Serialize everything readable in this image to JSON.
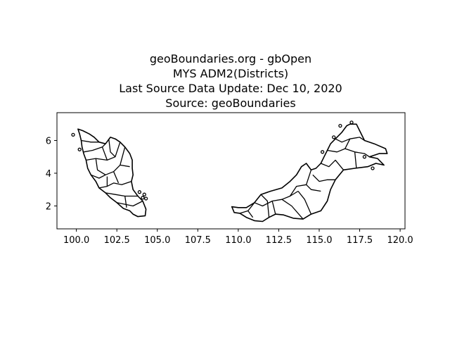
{
  "title_lines": [
    "geoBoundaries.org - gbOpen",
    "MYS ADM2(Districts)",
    "Last Source Data Update: Dec 10, 2020",
    "Source: geoBoundaries"
  ],
  "chart_data": {
    "type": "map",
    "xlim": [
      98.8,
      120.3
    ],
    "ylim": [
      0.6,
      7.7
    ],
    "x_ticks": [
      100.0,
      102.5,
      105.0,
      107.5,
      110.0,
      112.5,
      115.0,
      117.5,
      120.0
    ],
    "x_tick_labels": [
      "100.0",
      "102.5",
      "105.0",
      "107.5",
      "110.0",
      "112.5",
      "115.0",
      "117.5",
      "120.0"
    ],
    "y_ticks": [
      2,
      4,
      6
    ],
    "y_tick_labels": [
      "2",
      "4",
      "6"
    ],
    "grid": false,
    "regions": [
      {
        "name": "peninsular",
        "outline": [
          [
            100.1,
            6.7
          ],
          [
            100.4,
            6.6
          ],
          [
            100.8,
            6.4
          ],
          [
            101.1,
            6.2
          ],
          [
            101.4,
            5.9
          ],
          [
            101.8,
            5.8
          ],
          [
            102.1,
            6.2
          ],
          [
            102.4,
            6.1
          ],
          [
            102.7,
            5.9
          ],
          [
            103.0,
            5.6
          ],
          [
            103.3,
            5.2
          ],
          [
            103.45,
            4.8
          ],
          [
            103.45,
            4.3
          ],
          [
            103.5,
            3.9
          ],
          [
            103.4,
            3.5
          ],
          [
            103.5,
            3.0
          ],
          [
            103.8,
            2.6
          ],
          [
            104.1,
            2.3
          ],
          [
            104.3,
            1.8
          ],
          [
            104.25,
            1.4
          ],
          [
            103.8,
            1.35
          ],
          [
            103.5,
            1.5
          ],
          [
            103.3,
            1.7
          ],
          [
            102.9,
            1.85
          ],
          [
            102.5,
            2.2
          ],
          [
            102.1,
            2.5
          ],
          [
            101.8,
            2.8
          ],
          [
            101.4,
            3.1
          ],
          [
            101.2,
            3.5
          ],
          [
            100.9,
            3.9
          ],
          [
            100.7,
            4.3
          ],
          [
            100.6,
            4.8
          ],
          [
            100.45,
            5.2
          ],
          [
            100.35,
            5.6
          ],
          [
            100.3,
            6.0
          ],
          [
            100.2,
            6.4
          ],
          [
            100.1,
            6.7
          ]
        ],
        "inner_lines": [
          [
            [
              100.3,
              6.0
            ],
            [
              100.9,
              5.9
            ],
            [
              101.4,
              5.9
            ]
          ],
          [
            [
              100.45,
              5.3
            ],
            [
              101.0,
              5.4
            ],
            [
              101.6,
              5.6
            ],
            [
              101.8,
              5.8
            ]
          ],
          [
            [
              100.6,
              4.8
            ],
            [
              101.2,
              4.9
            ],
            [
              101.9,
              4.8
            ],
            [
              102.4,
              5.0
            ],
            [
              102.7,
              5.9
            ]
          ],
          [
            [
              101.2,
              4.9
            ],
            [
              101.3,
              4.2
            ],
            [
              101.8,
              3.9
            ],
            [
              102.3,
              4.1
            ],
            [
              102.7,
              4.5
            ],
            [
              103.3,
              4.4
            ]
          ],
          [
            [
              100.9,
              3.9
            ],
            [
              101.4,
              3.7
            ],
            [
              101.8,
              3.9
            ]
          ],
          [
            [
              101.4,
              3.1
            ],
            [
              101.9,
              3.2
            ],
            [
              102.3,
              3.4
            ],
            [
              102.8,
              3.3
            ],
            [
              103.4,
              3.5
            ]
          ],
          [
            [
              101.8,
              2.8
            ],
            [
              102.4,
              2.7
            ],
            [
              103.0,
              2.6
            ],
            [
              103.8,
              2.6
            ]
          ],
          [
            [
              102.5,
              2.2
            ],
            [
              103.0,
              2.1
            ],
            [
              103.5,
              2.0
            ],
            [
              104.1,
              2.3
            ]
          ],
          [
            [
              102.0,
              6.1
            ],
            [
              102.1,
              5.3
            ],
            [
              102.4,
              5.0
            ]
          ],
          [
            [
              101.6,
              5.6
            ],
            [
              101.9,
              4.8
            ]
          ],
          [
            [
              102.3,
              4.1
            ],
            [
              102.6,
              3.4
            ]
          ],
          [
            [
              103.0,
              2.6
            ],
            [
              103.1,
              1.9
            ]
          ],
          [
            [
              101.9,
              3.2
            ],
            [
              101.9,
              3.8
            ]
          ],
          [
            [
              102.7,
              4.5
            ],
            [
              103.0,
              5.6
            ]
          ]
        ],
        "islands": [
          [
            99.8,
            6.35
          ],
          [
            100.2,
            5.45
          ],
          [
            103.9,
            2.85
          ],
          [
            104.2,
            2.7
          ],
          [
            104.1,
            2.5
          ],
          [
            104.3,
            2.45
          ]
        ]
      },
      {
        "name": "borneo",
        "outline": [
          [
            109.6,
            1.95
          ],
          [
            109.75,
            1.6
          ],
          [
            110.1,
            1.55
          ],
          [
            110.5,
            1.3
          ],
          [
            111.0,
            1.1
          ],
          [
            111.5,
            1.05
          ],
          [
            111.9,
            1.3
          ],
          [
            112.3,
            1.5
          ],
          [
            112.8,
            1.45
          ],
          [
            113.4,
            1.25
          ],
          [
            114.0,
            1.2
          ],
          [
            114.5,
            1.5
          ],
          [
            115.1,
            1.7
          ],
          [
            115.5,
            2.3
          ],
          [
            115.7,
            3.0
          ],
          [
            116.0,
            3.6
          ],
          [
            116.5,
            4.2
          ],
          [
            117.2,
            4.3
          ],
          [
            118.0,
            4.4
          ],
          [
            118.5,
            4.6
          ],
          [
            119.0,
            4.5
          ],
          [
            118.6,
            4.9
          ],
          [
            118.1,
            5.0
          ],
          [
            118.7,
            5.2
          ],
          [
            119.2,
            5.2
          ],
          [
            119.1,
            5.5
          ],
          [
            118.4,
            5.8
          ],
          [
            117.8,
            6.0
          ],
          [
            117.5,
            6.6
          ],
          [
            117.3,
            7.0
          ],
          [
            116.9,
            7.0
          ],
          [
            116.7,
            6.9
          ],
          [
            116.4,
            6.5
          ],
          [
            116.0,
            6.1
          ],
          [
            115.7,
            5.8
          ],
          [
            115.5,
            5.4
          ],
          [
            115.3,
            5.0
          ],
          [
            115.1,
            4.6
          ],
          [
            114.8,
            4.3
          ],
          [
            114.5,
            4.2
          ],
          [
            114.2,
            4.6
          ],
          [
            113.9,
            4.4
          ],
          [
            113.6,
            3.9
          ],
          [
            113.2,
            3.5
          ],
          [
            112.7,
            3.1
          ],
          [
            112.0,
            2.9
          ],
          [
            111.4,
            2.7
          ],
          [
            111.0,
            2.2
          ],
          [
            110.5,
            1.9
          ],
          [
            110.0,
            1.9
          ],
          [
            109.6,
            1.95
          ]
        ],
        "inner_lines": [
          [
            [
              111.0,
              2.2
            ],
            [
              111.5,
              2.0
            ],
            [
              112.1,
              2.3
            ],
            [
              112.7,
              2.4
            ],
            [
              113.2,
              2.6
            ],
            [
              113.7,
              2.9
            ]
          ],
          [
            [
              111.4,
              2.7
            ],
            [
              111.8,
              2.3
            ],
            [
              111.9,
              1.3
            ]
          ],
          [
            [
              112.1,
              2.3
            ],
            [
              112.3,
              1.5
            ]
          ],
          [
            [
              112.7,
              2.4
            ],
            [
              113.3,
              2.0
            ],
            [
              114.0,
              1.2
            ]
          ],
          [
            [
              113.2,
              2.6
            ],
            [
              113.6,
              3.2
            ],
            [
              114.2,
              3.3
            ],
            [
              114.5,
              3.0
            ],
            [
              115.1,
              2.9
            ]
          ],
          [
            [
              113.7,
              2.9
            ],
            [
              114.1,
              2.4
            ],
            [
              114.5,
              1.5
            ]
          ],
          [
            [
              114.2,
              3.3
            ],
            [
              114.5,
              4.2
            ]
          ],
          [
            [
              114.6,
              3.9
            ],
            [
              115.0,
              3.5
            ],
            [
              115.5,
              3.6
            ],
            [
              116.0,
              3.6
            ]
          ],
          [
            [
              115.1,
              4.6
            ],
            [
              115.6,
              4.4
            ],
            [
              116.0,
              4.8
            ],
            [
              116.5,
              4.2
            ]
          ],
          [
            [
              115.5,
              5.4
            ],
            [
              116.1,
              5.3
            ],
            [
              116.6,
              5.5
            ],
            [
              117.2,
              5.3
            ],
            [
              117.8,
              5.2
            ],
            [
              118.1,
              5.0
            ]
          ],
          [
            [
              116.6,
              5.5
            ],
            [
              116.9,
              6.1
            ],
            [
              117.5,
              6.2
            ],
            [
              117.8,
              6.0
            ]
          ],
          [
            [
              116.0,
              6.1
            ],
            [
              116.4,
              5.9
            ],
            [
              116.9,
              6.1
            ]
          ],
          [
            [
              117.2,
              5.3
            ],
            [
              117.3,
              4.3
            ]
          ],
          [
            [
              110.1,
              1.55
            ],
            [
              110.6,
              1.7
            ],
            [
              111.0,
              2.2
            ]
          ],
          [
            [
              110.6,
              1.7
            ],
            [
              110.9,
              1.3
            ]
          ]
        ],
        "islands": [
          [
            115.2,
            5.3
          ],
          [
            115.9,
            6.2
          ],
          [
            117.0,
            7.1
          ],
          [
            117.8,
            5.0
          ],
          [
            118.3,
            4.3
          ],
          [
            116.3,
            6.9
          ]
        ]
      }
    ]
  }
}
